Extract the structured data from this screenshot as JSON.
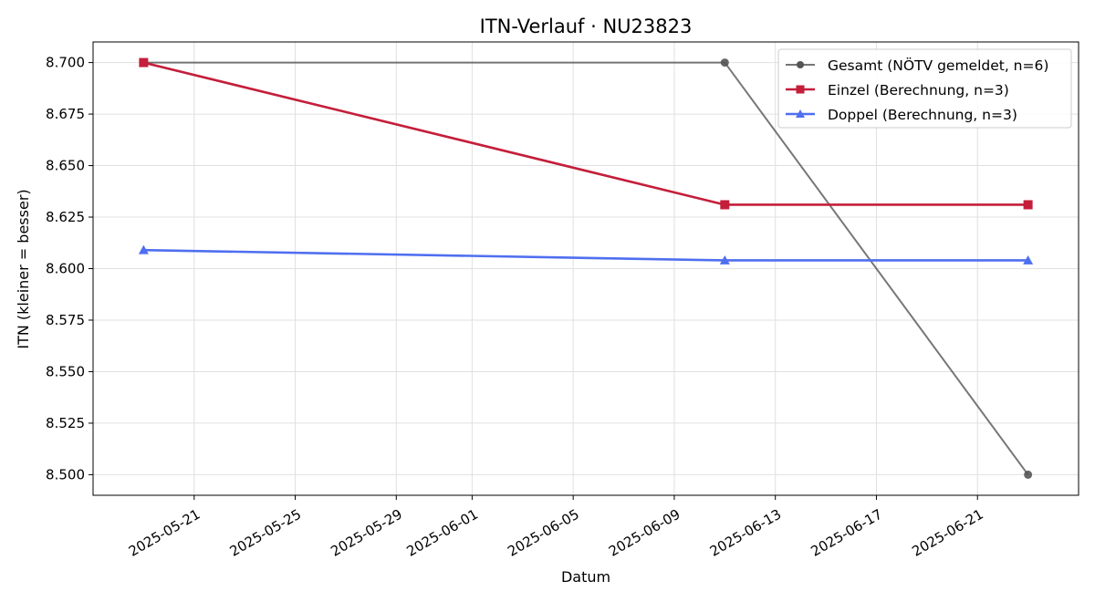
{
  "chart_data": {
    "type": "line",
    "title": "ITN-Verlauf · NU23823",
    "xlabel": "Datum",
    "ylabel": "ITN  (kleiner = besser)",
    "x_type": "date",
    "xlim": [
      "2025-05-17",
      "2025-06-25"
    ],
    "ylim": [
      8.49,
      8.71
    ],
    "x_ticks": [
      "2025-05-21",
      "2025-05-25",
      "2025-05-29",
      "2025-06-01",
      "2025-06-05",
      "2025-06-09",
      "2025-06-13",
      "2025-06-17",
      "2025-06-21"
    ],
    "y_ticks": [
      8.5,
      8.525,
      8.55,
      8.575,
      8.6,
      8.625,
      8.65,
      8.675,
      8.7
    ],
    "y_tick_labels": [
      "8.500",
      "8.525",
      "8.550",
      "8.575",
      "8.600",
      "8.625",
      "8.650",
      "8.675",
      "8.700"
    ],
    "grid": true,
    "legend_position": "top-right",
    "series": [
      {
        "name": "Gesamt (NÖTV gemeldet, n=6)",
        "color": "#555555",
        "marker": "circle",
        "x": [
          "2025-05-19",
          "2025-06-11",
          "2025-06-23"
        ],
        "y": [
          8.7,
          8.7,
          8.5
        ]
      },
      {
        "name": "Einzel (Berechnung, n=3)",
        "color": "#c41e3a",
        "marker": "square",
        "x": [
          "2025-05-19",
          "2025-06-11",
          "2025-06-23"
        ],
        "y": [
          8.7,
          8.631,
          8.631
        ]
      },
      {
        "name": "Doppel (Berechnung, n=3)",
        "color": "#4f6ff0",
        "marker": "triangle",
        "x": [
          "2025-05-19",
          "2025-06-11",
          "2025-06-23"
        ],
        "y": [
          8.609,
          8.604,
          8.604
        ]
      }
    ]
  }
}
